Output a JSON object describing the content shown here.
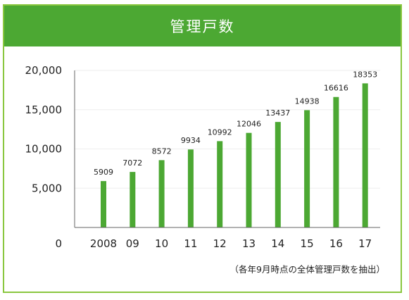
{
  "colors": {
    "header": "#4ca833",
    "border": "#8ac73f",
    "bar": "#4ca833"
  },
  "header": {
    "title": "管理戸数"
  },
  "note": "（各年9月時点の全体管理戸数を抽出）",
  "chart_data": {
    "type": "bar",
    "title": "管理戸数",
    "categories": [
      "2008",
      "09",
      "10",
      "11",
      "12",
      "13",
      "14",
      "15",
      "16",
      "17"
    ],
    "values": [
      5909,
      7072,
      8572,
      9934,
      10992,
      12046,
      13437,
      14938,
      16616,
      18353
    ],
    "ylim": [
      0,
      20000
    ],
    "yticks": [
      0,
      5000,
      10000,
      15000,
      20000
    ],
    "ytick_labels": [
      "0",
      "5,000",
      "10,000",
      "15,000",
      "20,000"
    ],
    "xlabel": "",
    "ylabel": "",
    "grid": true,
    "legend": "none"
  }
}
